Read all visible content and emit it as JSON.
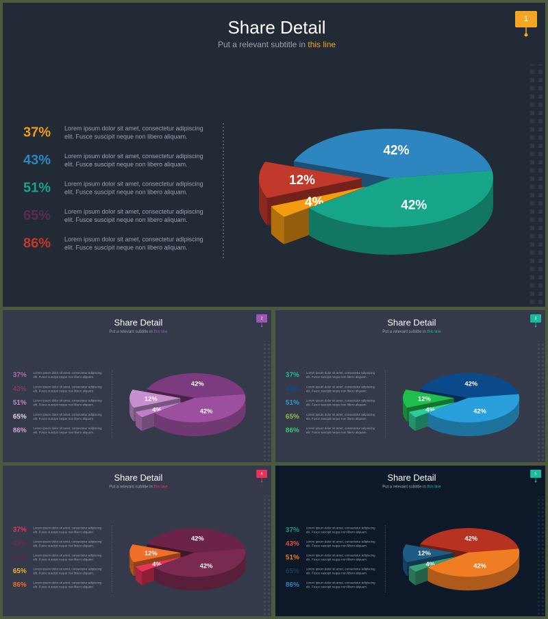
{
  "slides": [
    {
      "page": 1,
      "title": "Share Detail",
      "subtitle": "Put a relevant subtitle in ",
      "subtitle_highlight": "this line",
      "accent": "#f5a623",
      "background": "#222a36",
      "stats": {
        "labels": [
          "37%",
          "43%",
          "51%",
          "65%",
          "86%"
        ],
        "colors": [
          "#f39c12",
          "#2e86c1",
          "#17a589",
          "#5b2c4f",
          "#c0392b"
        ],
        "texts": [
          [
            "Lorem ipsum dolor sit amet, consectetur adipiscing",
            "elit. Fusce suscipit neque non libero aliquam."
          ],
          [
            "Lorem ipsum dolor sit amet, consectetur adipiscing",
            "elit. Fusce suscipit neque non libero aliquam."
          ],
          [
            "Lorem ipsum dolor sit amet, consectetur adipiscing",
            "elit. Fusce suscipit neque non libero aliquam."
          ],
          [
            "Lorem ipsum dolor sit amet, consectetur adipiscing",
            "elit. Fusce suscipit neque non libero aliquam."
          ],
          [
            "Lorem ipsum dolor sit amet, consectetur adipiscing",
            "elit. Fusce suscipit neque non libero aliquam."
          ]
        ]
      },
      "chart": {
        "type": "pie",
        "values": [
          42,
          42,
          4,
          12
        ],
        "value_labels": [
          "42%",
          "42%",
          "4%",
          "12%"
        ],
        "colors": [
          "#2e86c1",
          "#17a589",
          "#f39c12",
          "#c0392b"
        ]
      }
    },
    {
      "page": 2,
      "title": "Share Detail",
      "subtitle": "Put a relevant subtitle in ",
      "subtitle_highlight": "this line",
      "accent": "#9b59b6",
      "background": "#353a4b",
      "stats": {
        "labels": [
          "37%",
          "43%",
          "51%",
          "65%",
          "86%"
        ],
        "colors": [
          "#b06ab3",
          "#7d3c6b",
          "#c08ac8",
          "#e6d6e6",
          "#d0a0d8"
        ],
        "texts": [
          [
            "Lorem ipsum dolor sit amet, consectetur adipiscing",
            "elit. Fusce suscipit neque non libero aliquam."
          ],
          [
            "Lorem ipsum dolor sit amet, consectetur adipiscing",
            "elit. Fusce suscipit neque non libero aliquam."
          ],
          [
            "Lorem ipsum dolor sit amet, consectetur adipiscing",
            "elit. Fusce suscipit neque non libero aliquam."
          ],
          [
            "Lorem ipsum dolor sit amet, consectetur adipiscing",
            "elit. Fusce suscipit neque non libero aliquam."
          ],
          [
            "Lorem ipsum dolor sit amet, consectetur adipiscing",
            "elit. Fusce suscipit neque non libero aliquam."
          ]
        ]
      },
      "chart": {
        "type": "pie",
        "values": [
          42,
          42,
          4,
          12
        ],
        "value_labels": [
          "42%",
          "42%",
          "4%",
          "12%"
        ],
        "colors": [
          "#7b3b7e",
          "#9b4f9e",
          "#c07dc8",
          "#c78fcf"
        ]
      }
    },
    {
      "page": 3,
      "title": "Share Detail",
      "subtitle": "Put a relevant subtitle in ",
      "subtitle_highlight": "this line",
      "accent": "#1abc9c",
      "background": "#353a4b",
      "stats": {
        "labels": [
          "37%",
          "43%",
          "51%",
          "65%",
          "86%"
        ],
        "colors": [
          "#1abc9c",
          "#0b4a8a",
          "#3498db",
          "#8bc34a",
          "#2ecc71"
        ],
        "texts": [
          [
            "Lorem ipsum dolor sit amet, consectetur adipiscing",
            "elit. Fusce suscipit neque non libero aliquam."
          ],
          [
            "Lorem ipsum dolor sit amet, consectetur adipiscing",
            "elit. Fusce suscipit neque non libero aliquam."
          ],
          [
            "Lorem ipsum dolor sit amet, consectetur adipiscing",
            "elit. Fusce suscipit neque non libero aliquam."
          ],
          [
            "Lorem ipsum dolor sit amet, consectetur adipiscing",
            "elit. Fusce suscipit neque non libero aliquam."
          ],
          [
            "Lorem ipsum dolor sit amet, consectetur adipiscing",
            "elit. Fusce suscipit neque non libero aliquam."
          ]
        ]
      },
      "chart": {
        "type": "pie",
        "values": [
          42,
          42,
          4,
          12
        ],
        "value_labels": [
          "42%",
          "42%",
          "4%",
          "12%"
        ],
        "colors": [
          "#0b4a8a",
          "#29a0db",
          "#2ecc9a",
          "#1fbf4e"
        ]
      }
    },
    {
      "page": 4,
      "title": "Share Detail",
      "subtitle": "Put a relevant subtitle in ",
      "subtitle_highlight": "this line",
      "accent": "#e8335a",
      "background": "#353a4b",
      "stats": {
        "labels": [
          "37%",
          "43%",
          "51%",
          "65%",
          "86%"
        ],
        "colors": [
          "#e8335a",
          "#6b2a4a",
          "#5a2a4a",
          "#f0b429",
          "#f06d2a"
        ],
        "texts": [
          [
            "Lorem ipsum dolor sit amet, consectetur adipiscing",
            "elit. Fusce suscipit neque non libero aliquam."
          ],
          [
            "Lorem ipsum dolor sit amet, consectetur adipiscing",
            "elit. Fusce suscipit neque non libero aliquam."
          ],
          [
            "Lorem ipsum dolor sit amet, consectetur adipiscing",
            "elit. Fusce suscipit neque non libero aliquam."
          ],
          [
            "Lorem ipsum dolor sit amet, consectetur adipiscing",
            "elit. Fusce suscipit neque non libero aliquam."
          ],
          [
            "Lorem ipsum dolor sit amet, consectetur adipiscing",
            "elit. Fusce suscipit neque non libero aliquam."
          ]
        ]
      },
      "chart": {
        "type": "pie",
        "values": [
          42,
          42,
          4,
          12
        ],
        "value_labels": [
          "42%",
          "42%",
          "4%",
          "12%"
        ],
        "colors": [
          "#6b2448",
          "#7a2a50",
          "#e8335a",
          "#f06d2a"
        ]
      }
    },
    {
      "page": 5,
      "title": "Share Detail",
      "subtitle": "Put a relevant subtitle in ",
      "subtitle_highlight": "this line",
      "accent": "#1abc9c",
      "background": "#0d1828",
      "stats": {
        "labels": [
          "37%",
          "43%",
          "51%",
          "65%",
          "86%"
        ],
        "colors": [
          "#1a9e7a",
          "#e74c3c",
          "#f07d24",
          "#1b3b5e",
          "#2e86c1"
        ],
        "texts": [
          [
            "Lorem ipsum dolor sit amet, consectetur adipiscing",
            "elit. Fusce suscipit neque non libero aliquam."
          ],
          [
            "Lorem ipsum dolor sit amet, consectetur adipiscing",
            "elit. Fusce suscipit neque non libero aliquam."
          ],
          [
            "Lorem ipsum dolor sit amet, consectetur adipiscing",
            "elit. Fusce suscipit neque non libero aliquam."
          ],
          [
            "Lorem ipsum dolor sit amet, consectetur adipiscing",
            "elit. Fusce suscipit neque non libero aliquam."
          ],
          [
            "Lorem ipsum dolor sit amet, consectetur adipiscing",
            "elit. Fusce suscipit neque non libero aliquam."
          ]
        ]
      },
      "chart": {
        "type": "pie",
        "values": [
          42,
          42,
          4,
          12
        ],
        "value_labels": [
          "42%",
          "42%",
          "4%",
          "12%"
        ],
        "colors": [
          "#b83222",
          "#f07d24",
          "#3aa07a",
          "#1e5c86"
        ]
      }
    }
  ]
}
